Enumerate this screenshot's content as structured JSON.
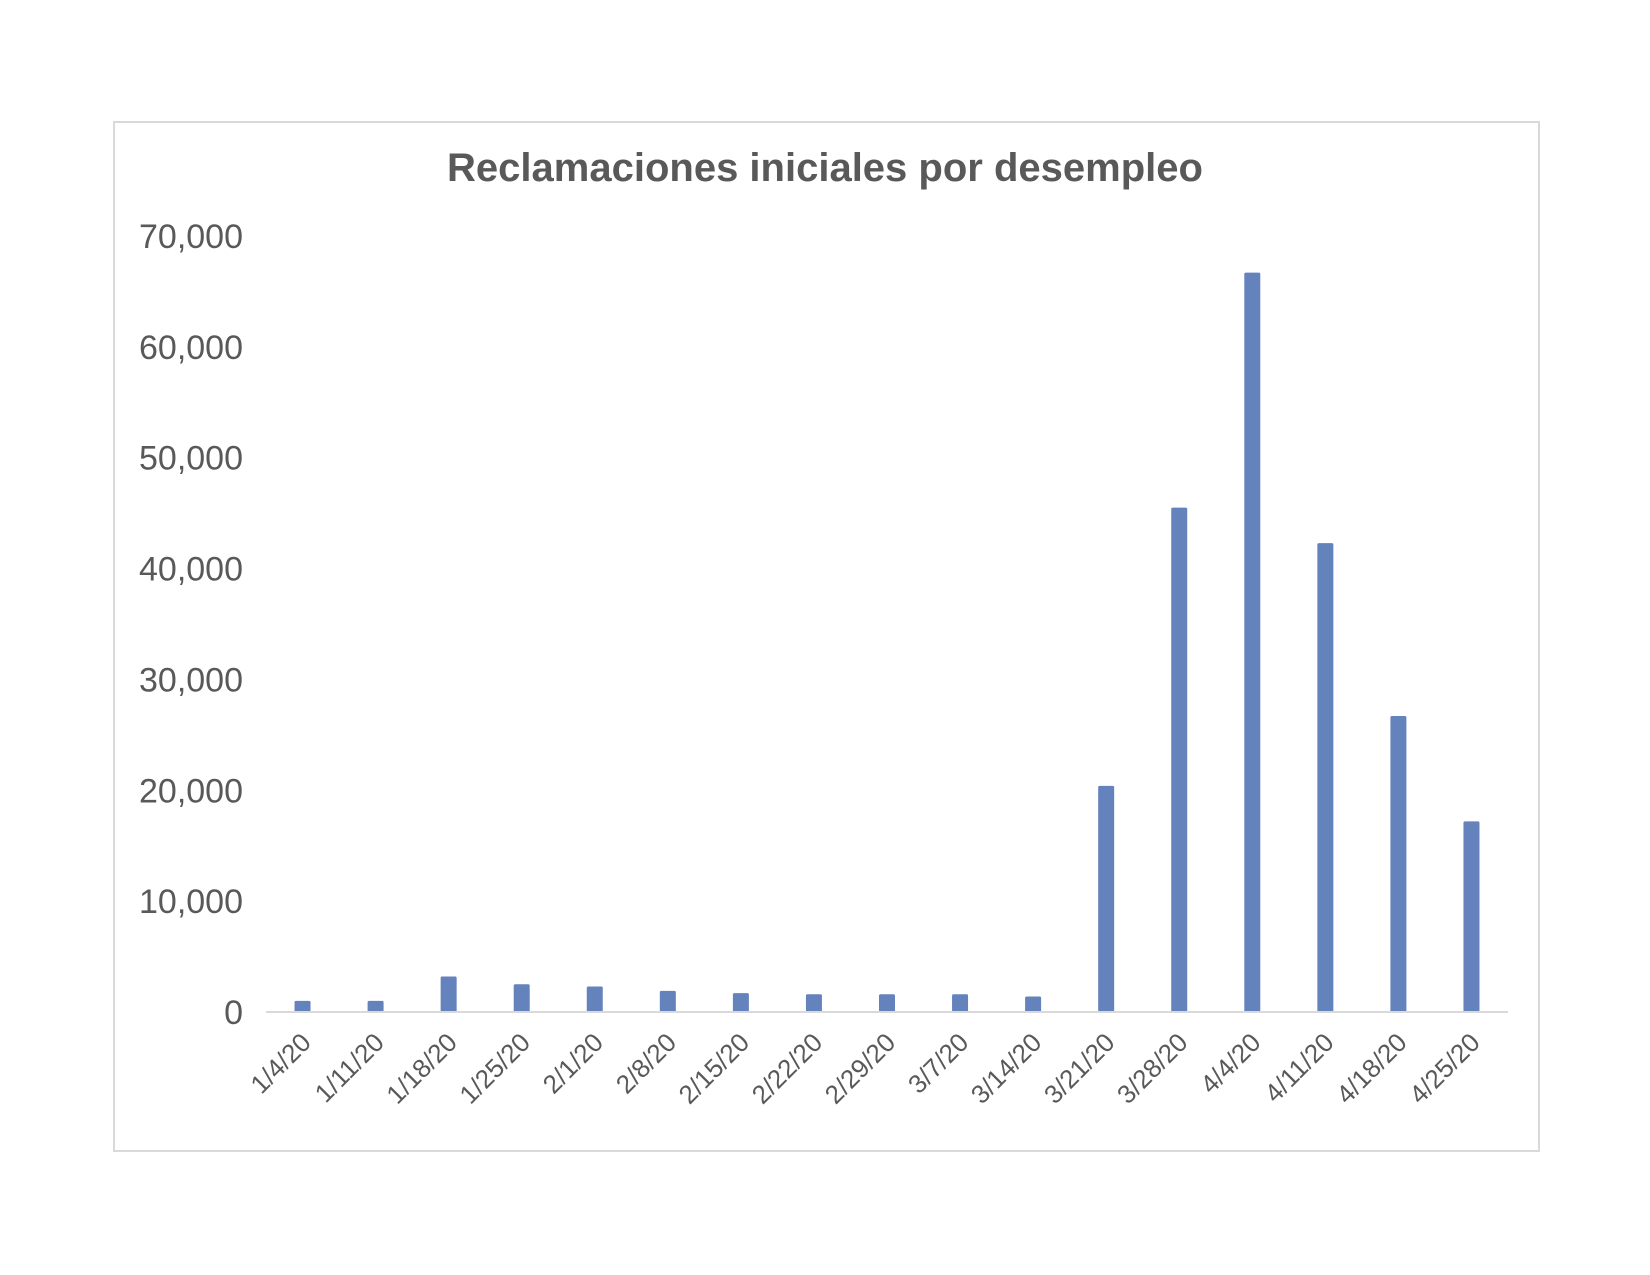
{
  "chart_data": {
    "type": "bar",
    "title": "Reclamaciones iniciales por desempleo",
    "xlabel": "",
    "ylabel": "",
    "categories": [
      "1/4/20",
      "1/11/20",
      "1/18/20",
      "1/25/20",
      "2/1/20",
      "2/8/20",
      "2/15/20",
      "2/22/20",
      "2/29/20",
      "3/7/20",
      "3/14/20",
      "3/21/20",
      "3/28/20",
      "4/4/20",
      "4/11/20",
      "4/18/20",
      "4/25/20"
    ],
    "values": [
      1000,
      1000,
      3200,
      2500,
      2300,
      1900,
      1700,
      1600,
      1600,
      1600,
      1400,
      20400,
      45500,
      66700,
      42300,
      26700,
      17200
    ],
    "ylim": [
      0,
      70000
    ],
    "yticks": [
      0,
      10000,
      20000,
      30000,
      40000,
      50000,
      60000,
      70000
    ],
    "ytick_labels": [
      "0",
      "10,000",
      "20,000",
      "30,000",
      "40,000",
      "50,000",
      "60,000",
      "70,000"
    ],
    "grid": false,
    "legend": "none",
    "colors": {
      "bar": "#6482bc",
      "text": "#595959",
      "axis": "#d9d9d9",
      "border": "#d9d9d9"
    }
  }
}
